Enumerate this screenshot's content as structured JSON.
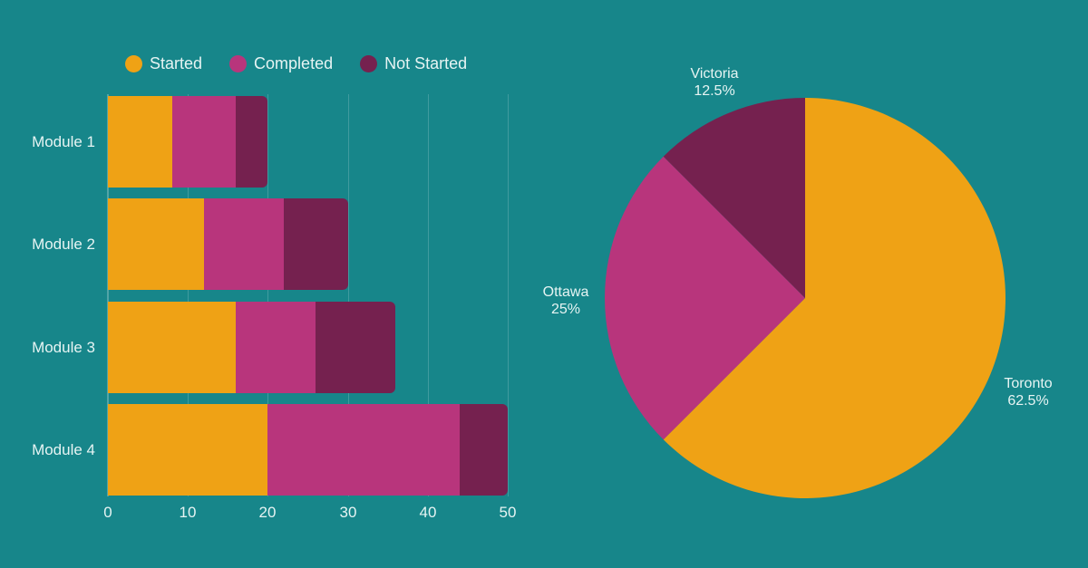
{
  "colors": {
    "background": "#17868a",
    "started": "#efa215",
    "completed": "#b8357c",
    "not_started": "#75214f"
  },
  "legend": [
    {
      "label": "Started",
      "color": "#efa215"
    },
    {
      "label": "Completed",
      "color": "#b8357c"
    },
    {
      "label": "Not Started",
      "color": "#75214f"
    }
  ],
  "chart_data": [
    {
      "type": "bar",
      "orientation": "horizontal",
      "stacked": true,
      "categories": [
        "Module 1",
        "Module 2",
        "Module 3",
        "Module 4"
      ],
      "series": [
        {
          "name": "Started",
          "values": [
            8,
            12,
            16,
            20
          ]
        },
        {
          "name": "Completed",
          "values": [
            8,
            10,
            10,
            24
          ]
        },
        {
          "name": "Not Started",
          "values": [
            4,
            8,
            10,
            6
          ]
        }
      ],
      "xticks": [
        "0",
        "10",
        "20",
        "30",
        "40",
        "50"
      ],
      "xlim": [
        0,
        50
      ],
      "title": "",
      "xlabel": "",
      "ylabel": "",
      "grid": "vertical",
      "legend_position": "top"
    },
    {
      "type": "pie",
      "slices": [
        {
          "label": "Toronto",
          "value": 62.5,
          "display": "62.5%"
        },
        {
          "label": "Ottawa",
          "value": 25,
          "display": "25%"
        },
        {
          "label": "Victoria",
          "value": 12.5,
          "display": "12.5%"
        }
      ],
      "start_angle": "12 o'clock, clockwise",
      "title": ""
    }
  ]
}
